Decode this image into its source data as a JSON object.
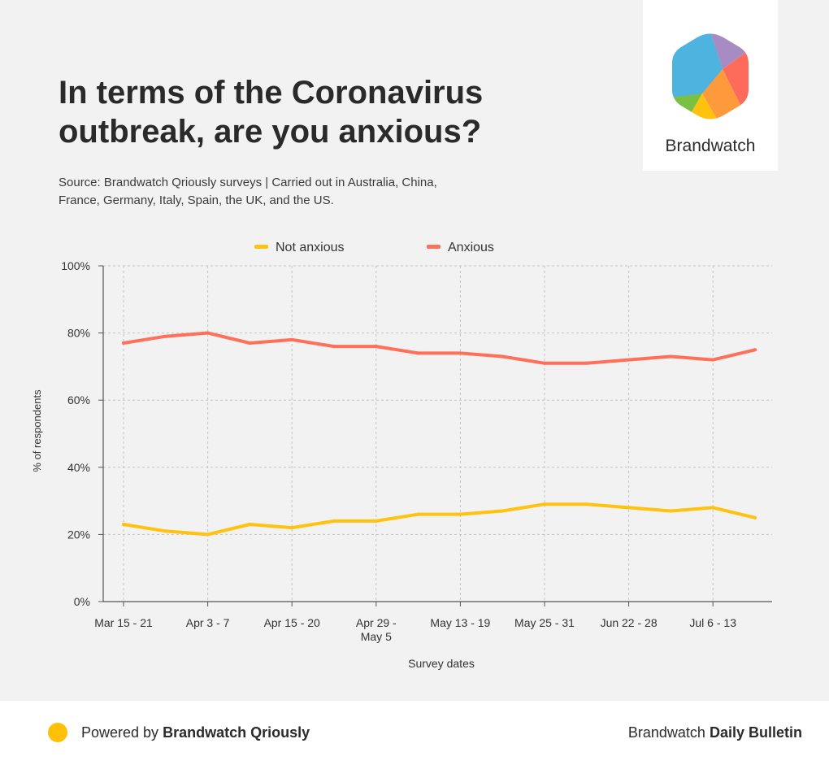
{
  "header": {
    "title": "In terms of the Coronavirus outbreak, are you anxious?",
    "subtitle": "Source: Brandwatch Qriously surveys | Carried out in Australia, China, France, Germany, Italy, Spain, the UK, and the US."
  },
  "logo": {
    "name": "Brandwatch",
    "icon": "brandwatch-hexagon-icon"
  },
  "footer": {
    "powered_prefix": "Powered by",
    "powered_brand": "Brandwatch Qriously",
    "bulletin_prefix": "Brandwatch",
    "bulletin_name": "Daily Bulletin"
  },
  "chart_data": {
    "type": "line",
    "xlabel": "Survey dates",
    "ylabel": "% of respondents",
    "ylim": [
      0,
      100
    ],
    "yticks": [
      0,
      20,
      40,
      60,
      80,
      100
    ],
    "ytick_labels": [
      "0%",
      "20%",
      "40%",
      "60%",
      "80%",
      "100%"
    ],
    "x_tick_labels": [
      "Mar 15 - 21",
      "Apr 3 - 7",
      "Apr 15 - 20",
      "Apr 29 - May 5",
      "May 13 - 19",
      "May 25 - 31",
      "Jun 22 - 28",
      "Jul 6 - 13"
    ],
    "x_tick_indices": [
      0,
      2,
      4,
      6,
      8,
      10,
      12,
      14
    ],
    "n_points": 16,
    "grid": true,
    "legend_position": "top",
    "series": [
      {
        "name": "Not anxious",
        "color": "#ffc20e",
        "values": [
          23,
          21,
          20,
          23,
          22,
          24,
          24,
          26,
          26,
          27,
          29,
          29,
          28,
          27,
          28,
          25
        ]
      },
      {
        "name": "Anxious",
        "color": "#ff6f59",
        "values": [
          77,
          79,
          80,
          77,
          78,
          76,
          76,
          74,
          74,
          73,
          71,
          71,
          72,
          73,
          72,
          75
        ]
      }
    ]
  }
}
